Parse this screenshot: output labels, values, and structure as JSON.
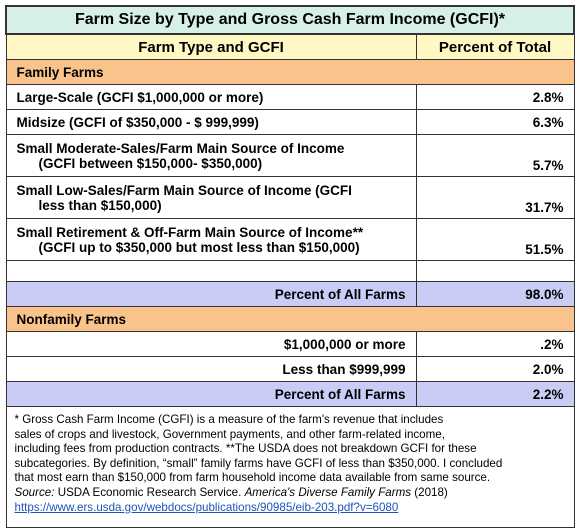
{
  "title": "Farm Size by Type and Gross Cash Farm Income (GCFI)*",
  "header": {
    "col1": "Farm Type and GCFI",
    "col2": "Percent of Total"
  },
  "family": {
    "section": "Family Farms",
    "rows": [
      {
        "line1": "Large-Scale (GCFI $1,000,000 or more)",
        "line2": "",
        "value": "2.8%"
      },
      {
        "line1": "Midsize (GCFI of $350,000 - $ 999,999)",
        "line2": "",
        "value": "6.3%"
      },
      {
        "line1": "Small Moderate-Sales/Farm Main Source of Income",
        "line2": "(GCFI between $150,000- $350,000)",
        "value": "5.7%"
      },
      {
        "line1": "Small Low-Sales/Farm Main Source of Income  (GCFI",
        "line2": "less than $150,000)",
        "value": "31.7%"
      },
      {
        "line1": "Small Retirement & Off-Farm Main Source of Income**",
        "line2": "(GCFI up to $350,000 but most less than $150,000)",
        "value": "51.5%"
      }
    ],
    "total_label": "Percent of All Farms",
    "total_value": "98.0%"
  },
  "nonfamily": {
    "section": "Nonfamily Farms",
    "rows": [
      {
        "label": "$1,000,000 or more",
        "value": ".2%"
      },
      {
        "label": "Less than $999,999",
        "value": "2.0%"
      }
    ],
    "total_label": "Percent of All Farms",
    "total_value": "2.2%"
  },
  "footnote": {
    "line1": "* Gross Cash Farm Income (CGFI)  is a measure of the farm's revenue that includes",
    "line2": " sales of  crops and livestock, Government payments, and other farm-related income,",
    "line3": " including fees from production contracts.  **The USDA does not breakdown GCFI for these",
    "line4": "subcategories. By definition, “small” family farms have GCFI of less than $350,000. I concluded",
    "line5": "that most earn than $150,000 from farm household income data available from same source.",
    "source_label": "Source:",
    "source_text": " USDA Economic Research Service. ",
    "source_title": "America's Diverse Family Farms",
    "source_year": " (2018)",
    "link": "https://www.ers.usda.gov/webdocs/publications/90985/eib-203.pdf?v=6080"
  },
  "colors": {
    "title_bg": "#d7f0e6",
    "header_bg": "#fff8c4",
    "section_bg": "#f9c38b",
    "total_bg": "#c9cdf5",
    "link": "#1a56b8"
  }
}
